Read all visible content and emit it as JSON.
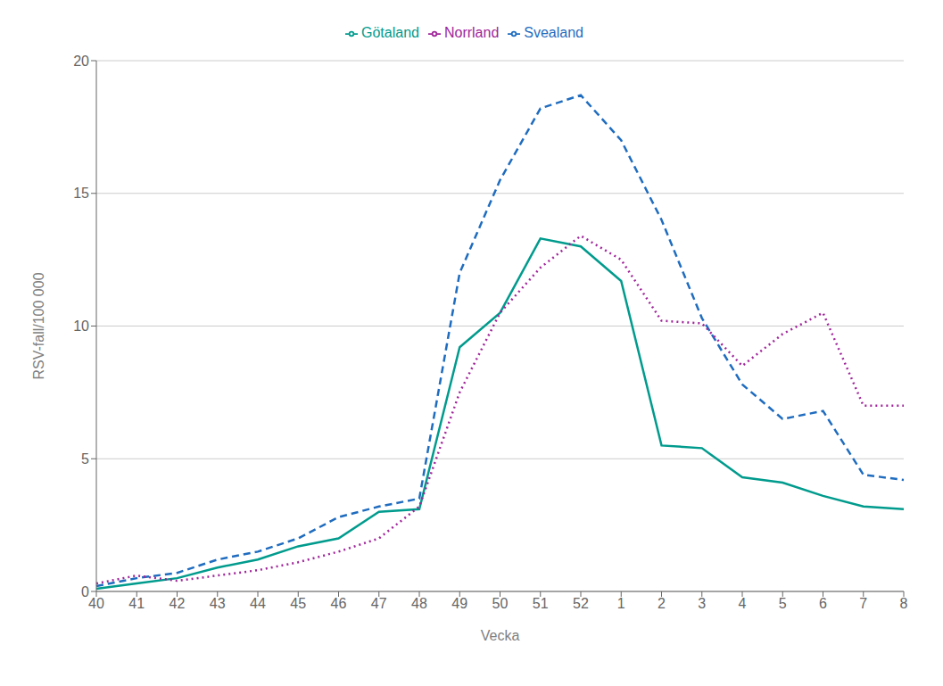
{
  "chart_data": {
    "type": "line",
    "xlabel": "Vecka",
    "ylabel": "RSV-fall/100 000",
    "categories": [
      "40",
      "41",
      "42",
      "43",
      "44",
      "45",
      "46",
      "47",
      "48",
      "49",
      "50",
      "51",
      "52",
      "1",
      "2",
      "3",
      "4",
      "5",
      "6",
      "7",
      "8"
    ],
    "series": [
      {
        "name": "Götaland",
        "color": "#009b8d",
        "line_style": "solid",
        "values": [
          0.1,
          0.3,
          0.5,
          0.9,
          1.2,
          1.7,
          2.0,
          3.0,
          3.1,
          9.2,
          10.5,
          13.3,
          13.0,
          11.7,
          5.5,
          5.4,
          4.3,
          4.1,
          3.6,
          3.2,
          3.1
        ]
      },
      {
        "name": "Svealand",
        "color": "#1f6cbf",
        "line_style": "dashed",
        "values": [
          0.2,
          0.5,
          0.7,
          1.2,
          1.5,
          2.0,
          2.8,
          3.2,
          3.5,
          12.0,
          15.5,
          18.2,
          18.7,
          17.0,
          14.0,
          10.3,
          7.8,
          6.5,
          6.8,
          4.4,
          4.2
        ]
      },
      {
        "name": "Norrland",
        "color": "#a0259a",
        "line_style": "dotted",
        "values": [
          0.3,
          0.6,
          0.4,
          0.6,
          0.8,
          1.1,
          1.5,
          2.0,
          3.2,
          7.5,
          10.5,
          12.2,
          13.4,
          12.5,
          10.2,
          10.1,
          8.5,
          9.7,
          10.5,
          7.0,
          7.0
        ]
      }
    ],
    "ylim": [
      0,
      20
    ],
    "yticks": [
      0,
      5,
      10,
      15,
      20
    ],
    "grid": true,
    "legend": "top"
  }
}
